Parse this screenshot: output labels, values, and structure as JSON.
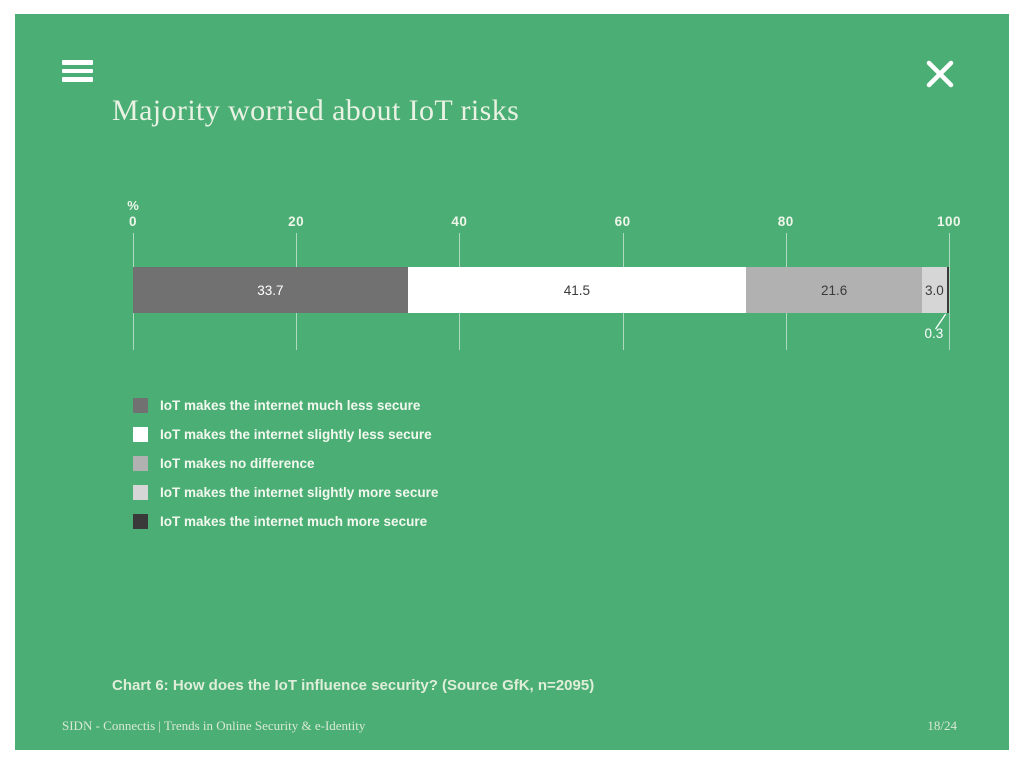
{
  "slide": {
    "title": "Majority worried about IoT risks",
    "caption": "Chart 6: How does the IoT influence security? (Source GfK, n=2095)",
    "footer_left": "SIDN - Connectis  |  Trends in Online Security & e-Identity",
    "page_number": "18/24"
  },
  "colors": {
    "slide-bg": "#4bae75",
    "frame-bg": "#ffffff",
    "title-text": "#e9f2e3",
    "axis-text": "#eef6ea",
    "gridline": "rgba(255,255,255,0.55)",
    "legend-text": "#f2f8ee",
    "caption-text": "#dfeed9",
    "footer-text": "#d9e9d3"
  },
  "chart_data": {
    "type": "bar",
    "stacked": true,
    "orientation": "horizontal",
    "unit": "%",
    "axis": {
      "min": 0,
      "max": 100,
      "ticks": [
        0,
        20,
        40,
        60,
        80,
        100
      ]
    },
    "segments": [
      {
        "label": "IoT makes the internet much less secure",
        "value": 33.7,
        "color": "#717171",
        "text_color": "#ffffff",
        "callout": false
      },
      {
        "label": "IoT makes the internet slightly less secure",
        "value": 41.5,
        "color": "#ffffff",
        "text_color": "#3b3b3b",
        "callout": false
      },
      {
        "label": "IoT makes no difference",
        "value": 21.6,
        "color": "#b1b1b1",
        "text_color": "#3b3b3b",
        "callout": false
      },
      {
        "label": "IoT makes the internet slightly more secure",
        "value": 3.0,
        "color": "#d6d6d6",
        "text_color": "#3b3b3b",
        "callout": false
      },
      {
        "label": "IoT makes the internet much more secure",
        "value": 0.3,
        "color": "#3a3a3a",
        "text_color": "#ffffff",
        "callout": true
      }
    ]
  }
}
